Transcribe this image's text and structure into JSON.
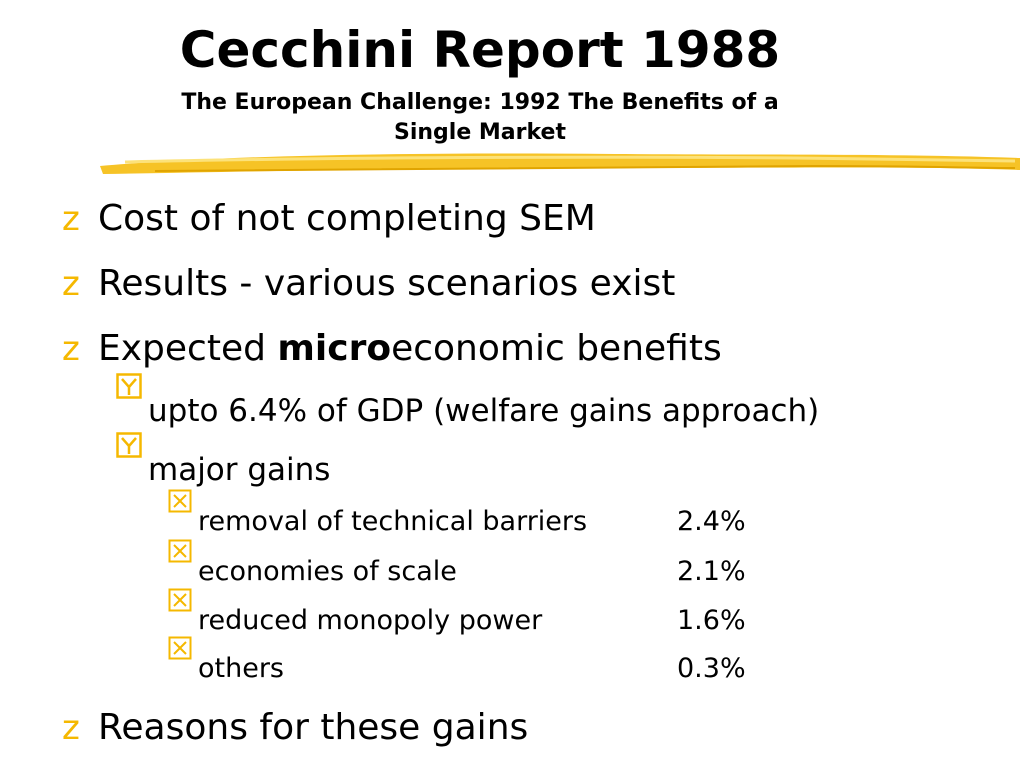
{
  "slide": {
    "title": "Cecchini Report 1988",
    "subtitle_line1": "The European Challenge: 1992 The Benefits of a",
    "subtitle_line2": "Single Market"
  },
  "colors": {
    "accent": "#F5B800",
    "text": "#000000"
  },
  "bullets": {
    "level1_symbol": "z",
    "level2_symbol": "y",
    "level3_symbol": "x"
  },
  "items": {
    "cost": "Cost of not completing SEM",
    "results": "Results - various scenarios exist",
    "expected_prefix": "Expected ",
    "expected_bold": "micro",
    "expected_suffix": "economic benefits",
    "upto": "upto 6.4% of GDP (welfare gains approach)",
    "major": "major gains",
    "reasons": "Reasons for these gains"
  },
  "gains": [
    {
      "label": "removal of technical barriers",
      "value": "2.4%"
    },
    {
      "label": "economies of scale",
      "value": "2.1%"
    },
    {
      "label": "reduced monopoly power",
      "value": "1.6%"
    },
    {
      "label": "others",
      "value": "0.3%"
    }
  ]
}
